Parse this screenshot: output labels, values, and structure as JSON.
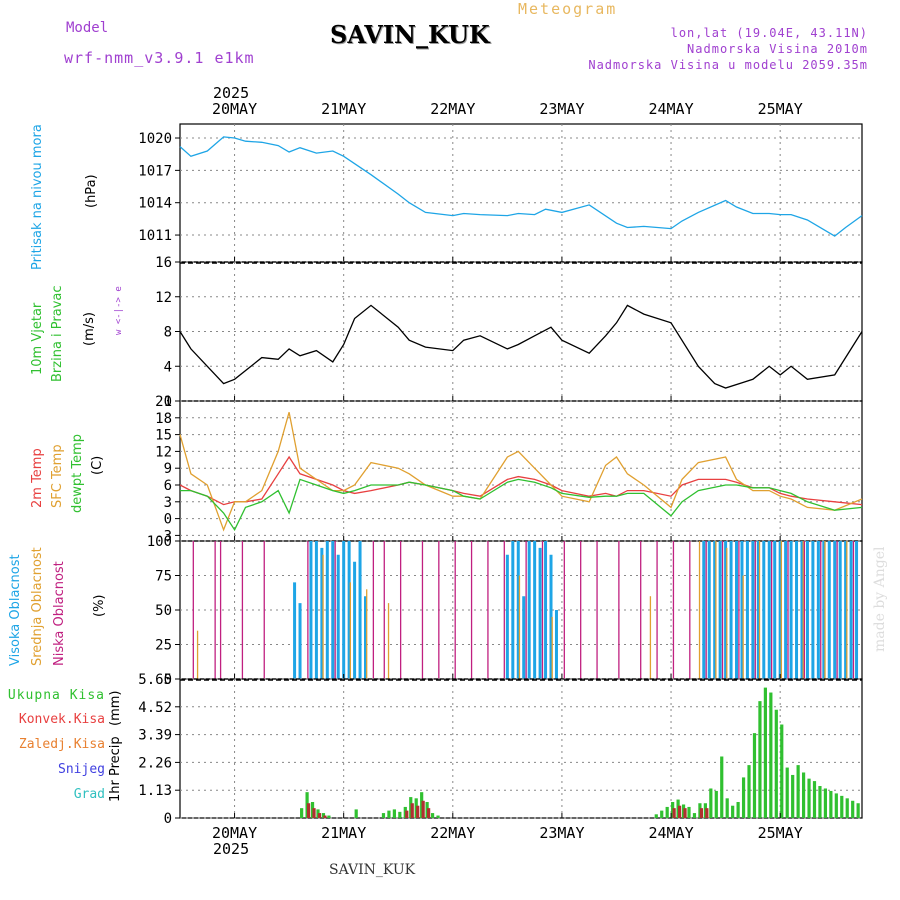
{
  "header": {
    "model_label": "Model",
    "model_name": "wrf-nmm_v3.9.1 e1km",
    "title": "SAVIN_KUK",
    "subtitle": "Meteogram",
    "lonlat": "lon,lat (19.04E, 43.11N)",
    "elevation": "Nadmorska Visina 2010m",
    "model_elevation": "Nadmorska Visina u modelu 2059.35m",
    "footer_title": "SAVIN_KUK",
    "watermark": "made by Angel",
    "top_year": "2025",
    "bottom_year": "2025"
  },
  "colors": {
    "pressure": "#1ea5e6",
    "temp2m": "#e84040",
    "sfc_temp": "#e0a030",
    "dewpt": "#30c030",
    "high_cloud": "#1ea5e6",
    "mid_cloud": "#e0a030",
    "low_cloud": "#c02080",
    "total_precip": "#30c030",
    "conv_precip": "#b03030"
  },
  "chart_data": [
    {
      "type": "line",
      "panel": "pressure",
      "ylabel_1": "Pritisak na nivou mora",
      "ylabel_2": "(hPa)",
      "yticks": [
        "1020",
        "1017",
        "1014",
        "1011"
      ],
      "ylim": [
        1008.5,
        1021.3
      ],
      "xlim": [
        0,
        6.25
      ],
      "x_labels": [
        "20MAY",
        "21MAY",
        "22MAY",
        "23MAY",
        "24MAY",
        "25MAY"
      ],
      "series": [
        {
          "x": [
            0,
            0.1,
            0.25,
            0.4,
            0.5,
            0.6,
            0.75,
            0.9,
            1.0,
            1.1,
            1.25,
            1.4,
            1.5,
            1.75,
            2.0,
            2.1,
            2.25,
            2.5,
            2.6,
            2.75,
            3.0,
            3.1,
            3.25,
            3.35,
            3.5,
            3.75,
            4.0,
            4.1,
            4.25,
            4.5,
            4.6,
            4.75,
            5.0,
            5.1,
            5.25,
            5.4,
            5.5,
            5.6,
            5.75,
            6.0,
            6.1,
            6.25
          ],
          "y": [
            1019.2,
            1018.3,
            1018.8,
            1020.1,
            1020.0,
            1019.7,
            1019.6,
            1019.3,
            1018.7,
            1019.1,
            1018.6,
            1018.8,
            1018.3,
            1016.6,
            1014.8,
            1014.0,
            1013.1,
            1012.8,
            1013.0,
            1012.9,
            1012.8,
            1013.0,
            1012.9,
            1013.4,
            1013.1,
            1013.8,
            1012.1,
            1011.7,
            1011.8,
            1011.6,
            1012.3,
            1013.1,
            1014.2,
            1013.6,
            1013.0,
            1013.0,
            1012.9,
            1012.9,
            1012.4,
            1010.9,
            1011.7,
            1012.8
          ]
        }
      ]
    },
    {
      "type": "line",
      "panel": "wind",
      "ylabel_1": "10m Vjetar",
      "ylabel_2": "Brzina i Pravac",
      "ylabel_3": "(m/s)",
      "compass": "w <-|-> e",
      "yticks": [
        "16",
        "12",
        "8",
        "4",
        "0"
      ],
      "ylim": [
        0,
        16
      ],
      "xlim": [
        0,
        6.25
      ],
      "series": [
        {
          "x": [
            0,
            0.1,
            0.25,
            0.4,
            0.5,
            0.75,
            0.9,
            1.0,
            1.1,
            1.25,
            1.4,
            1.5,
            1.6,
            1.75,
            2.0,
            2.1,
            2.25,
            2.5,
            2.6,
            2.75,
            3.0,
            3.1,
            3.25,
            3.4,
            3.5,
            3.75,
            3.9,
            4.0,
            4.1,
            4.25,
            4.5,
            4.75,
            4.9,
            5.0,
            5.25,
            5.4,
            5.5,
            5.6,
            5.75,
            6.0,
            6.25
          ],
          "y": [
            8.0,
            6.0,
            4.0,
            2.0,
            2.5,
            5.0,
            4.8,
            6.0,
            5.2,
            5.8,
            4.5,
            6.5,
            9.5,
            11.0,
            8.5,
            7.0,
            6.2,
            5.8,
            7.0,
            7.5,
            6.0,
            6.5,
            7.5,
            8.5,
            7.0,
            5.5,
            7.5,
            9.0,
            11.0,
            10.0,
            9.0,
            4.0,
            2.0,
            1.5,
            2.5,
            4.0,
            3.0,
            4.0,
            2.5,
            3.0,
            8.0
          ]
        }
      ]
    },
    {
      "type": "line",
      "panel": "temperature",
      "ylabel_1": "2m Temp",
      "ylabel_2": "SFC Temp",
      "ylabel_3": "dewpt Temp",
      "ylabel_4": "(C)",
      "yticks": [
        "21",
        "18",
        "15",
        "12",
        "9",
        "6",
        "3",
        "0",
        "-3"
      ],
      "ylim": [
        -4,
        21
      ],
      "xlim": [
        0,
        6.25
      ],
      "series": [
        {
          "name": "2m Temp",
          "x": [
            0,
            0.1,
            0.25,
            0.4,
            0.5,
            0.6,
            0.75,
            0.9,
            1.0,
            1.1,
            1.25,
            1.4,
            1.5,
            1.6,
            1.75,
            2.0,
            2.1,
            2.25,
            2.5,
            2.6,
            2.75,
            3.0,
            3.1,
            3.25,
            3.4,
            3.5,
            3.75,
            3.9,
            4.0,
            4.1,
            4.25,
            4.5,
            4.6,
            4.75,
            5.0,
            5.1,
            5.25,
            5.4,
            5.5,
            5.6,
            5.75,
            6.0,
            6.25
          ],
          "y": [
            6,
            5,
            4,
            2.5,
            3,
            3,
            3.5,
            8,
            11,
            8,
            7,
            6,
            5,
            4.5,
            5,
            6,
            6.5,
            6,
            5,
            4.5,
            4,
            7,
            7.5,
            7,
            6,
            5,
            4,
            4.5,
            4,
            5,
            5,
            4,
            6,
            7,
            7,
            6.5,
            5.5,
            5.5,
            4.5,
            4,
            3.5,
            3,
            2.5
          ]
        },
        {
          "name": "SFC Temp",
          "x": [
            0,
            0.1,
            0.25,
            0.4,
            0.5,
            0.6,
            0.75,
            0.9,
            1.0,
            1.1,
            1.25,
            1.4,
            1.5,
            1.6,
            1.75,
            2.0,
            2.1,
            2.25,
            2.5,
            2.6,
            2.75,
            3.0,
            3.1,
            3.25,
            3.4,
            3.5,
            3.75,
            3.9,
            4.0,
            4.1,
            4.25,
            4.5,
            4.6,
            4.75,
            5.0,
            5.1,
            5.25,
            5.4,
            5.5,
            5.6,
            5.75,
            6.0,
            6.25
          ],
          "y": [
            15,
            8,
            6,
            -2,
            3,
            3,
            5,
            12,
            19,
            9,
            7,
            5,
            5,
            6,
            10,
            9,
            8,
            6,
            4,
            4,
            3.5,
            11,
            12,
            9,
            6,
            4,
            3,
            9.5,
            11,
            8,
            6,
            2,
            7,
            10,
            11,
            7,
            5,
            5,
            4,
            3.5,
            2,
            1.5,
            3.5
          ]
        },
        {
          "name": "dewpt Temp",
          "x": [
            0,
            0.1,
            0.25,
            0.4,
            0.5,
            0.6,
            0.75,
            0.9,
            1.0,
            1.1,
            1.25,
            1.4,
            1.5,
            1.6,
            1.75,
            2.0,
            2.1,
            2.25,
            2.5,
            2.6,
            2.75,
            3.0,
            3.1,
            3.25,
            3.4,
            3.5,
            3.75,
            3.9,
            4.0,
            4.1,
            4.25,
            4.5,
            4.6,
            4.75,
            5.0,
            5.1,
            5.25,
            5.4,
            5.5,
            5.6,
            5.75,
            6.0,
            6.25
          ],
          "y": [
            5,
            5,
            4,
            1,
            -2,
            2,
            3,
            5,
            1,
            7,
            6,
            5,
            4.5,
            5,
            6,
            6,
            6.5,
            6,
            5,
            4,
            3.5,
            6.5,
            7,
            6.5,
            5.5,
            4.5,
            3.8,
            4,
            4,
            4.5,
            4.5,
            0.5,
            3,
            5,
            6,
            6,
            5.5,
            5.5,
            5,
            4.5,
            3,
            1.5,
            2
          ]
        }
      ]
    },
    {
      "type": "bar",
      "panel": "clouds",
      "ylabel_1": "Visoka Oblacnost",
      "ylabel_2": "Srednja Oblacnost",
      "ylabel_3": "Niska Oblacnost",
      "ylabel_4": "(%)",
      "yticks": [
        "100",
        "75",
        "50",
        "25",
        "0"
      ],
      "ylim": [
        0,
        100
      ],
      "xlim": [
        0,
        6.25
      ],
      "series": [
        {
          "name": "Visoka Oblacnost",
          "x": [
            1.05,
            1.1,
            1.2,
            1.25,
            1.3,
            1.35,
            1.4,
            1.45,
            1.5,
            1.55,
            1.6,
            1.65,
            1.7,
            3.0,
            3.05,
            3.1,
            3.15,
            3.2,
            3.25,
            3.3,
            3.35,
            3.4,
            3.45,
            4.8,
            4.85,
            4.9,
            4.95,
            5.0,
            5.05,
            5.1,
            5.15,
            5.2,
            5.25,
            5.3,
            5.35,
            5.4,
            5.45,
            5.5,
            5.55,
            5.6,
            5.65,
            5.7,
            5.75,
            5.8,
            5.85,
            5.9,
            5.95,
            6.0,
            6.05,
            6.1,
            6.15,
            6.2
          ],
          "y": [
            70,
            55,
            100,
            100,
            95,
            100,
            100,
            90,
            100,
            100,
            85,
            100,
            60,
            90,
            100,
            100,
            60,
            100,
            100,
            95,
            100,
            90,
            50,
            100,
            100,
            100,
            100,
            100,
            100,
            100,
            100,
            100,
            100,
            100,
            100,
            100,
            100,
            100,
            100,
            100,
            100,
            100,
            100,
            100,
            100,
            100,
            100,
            100,
            100,
            100,
            100,
            100
          ]
        },
        {
          "name": "Srednja Oblacnost",
          "x": [
            0.15,
            1.3,
            1.55,
            1.7,
            1.9,
            3.1,
            3.4,
            4.3,
            4.75,
            4.9,
            5.0,
            5.15,
            5.3,
            5.5,
            5.7,
            5.9,
            6.1
          ],
          "y": [
            35,
            90,
            70,
            65,
            55,
            75,
            45,
            60,
            100,
            100,
            95,
            75,
            100,
            100,
            100,
            100,
            100
          ]
        },
        {
          "name": "Niska Oblacnost",
          "x": [
            0.1,
            0.3,
            0.35,
            0.55,
            0.75,
            1.15,
            1.4,
            1.75,
            1.85,
            2.0,
            2.2,
            2.35,
            2.5,
            2.65,
            2.8,
            2.95,
            3.15,
            3.3,
            3.5,
            3.65,
            3.8,
            4.0,
            4.2,
            4.35,
            4.5,
            4.65,
            4.8,
            4.95,
            5.1,
            5.25,
            5.4,
            5.55,
            5.7,
            5.85,
            6.0,
            6.15
          ],
          "y": [
            100,
            100,
            100,
            100,
            100,
            100,
            100,
            100,
            100,
            100,
            100,
            100,
            100,
            100,
            100,
            100,
            100,
            100,
            100,
            100,
            100,
            100,
            100,
            100,
            100,
            100,
            100,
            100,
            100,
            100,
            100,
            100,
            100,
            100,
            100,
            100
          ]
        }
      ]
    },
    {
      "type": "bar",
      "panel": "precip",
      "ylabel_1": "1hr Precip",
      "ylabel_2": "(mm)",
      "legend": [
        "Ukupna Kisa",
        "Konvek.Kisa",
        "Zaledj.Kisa",
        "Snijeg",
        "Grad"
      ],
      "yticks": [
        "5.65",
        "4.52",
        "3.39",
        "2.26",
        "1.13",
        "0"
      ],
      "ylim": [
        0,
        5.65
      ],
      "xlim": [
        0,
        6.25
      ],
      "series": [
        {
          "name": "Ukupna Kisa",
          "x": [
            1.1,
            1.15,
            1.2,
            1.25,
            1.3,
            1.35,
            1.6,
            1.85,
            1.9,
            1.95,
            2.0,
            2.05,
            2.1,
            2.15,
            2.2,
            2.25,
            2.3,
            2.35,
            4.35,
            4.4,
            4.45,
            4.5,
            4.55,
            4.6,
            4.65,
            4.7,
            4.75,
            4.8,
            4.85,
            4.9,
            4.95,
            5.0,
            5.05,
            5.1,
            5.15,
            5.2,
            5.25,
            5.3,
            5.35,
            5.4,
            5.45,
            5.5,
            5.55,
            5.6,
            5.65,
            5.7,
            5.75,
            5.8,
            5.85,
            5.9,
            5.95,
            6.0,
            6.05,
            6.1,
            6.15,
            6.2
          ],
          "y": [
            0.4,
            1.05,
            0.65,
            0.35,
            0.2,
            0.1,
            0.35,
            0.2,
            0.3,
            0.35,
            0.25,
            0.45,
            0.85,
            0.8,
            1.05,
            0.65,
            0.2,
            0.1,
            0.15,
            0.3,
            0.45,
            0.65,
            0.75,
            0.55,
            0.45,
            0.2,
            0.6,
            0.6,
            1.2,
            1.1,
            2.5,
            0.8,
            0.5,
            0.65,
            1.65,
            2.15,
            3.45,
            4.75,
            5.3,
            5.1,
            4.4,
            3.8,
            2.05,
            1.75,
            2.15,
            1.85,
            1.6,
            1.5,
            1.3,
            1.2,
            1.1,
            1.0,
            0.9,
            0.8,
            0.7,
            0.6
          ]
        },
        {
          "name": "Konvek.Kisa",
          "x": [
            1.15,
            1.2,
            1.25,
            1.3,
            2.05,
            2.1,
            2.15,
            2.2,
            2.25,
            4.5,
            4.55,
            4.6,
            4.75,
            4.8
          ],
          "y": [
            0.6,
            0.4,
            0.2,
            0.1,
            0.3,
            0.6,
            0.5,
            0.7,
            0.4,
            0.4,
            0.5,
            0.4,
            0.4,
            0.4
          ]
        }
      ]
    }
  ]
}
